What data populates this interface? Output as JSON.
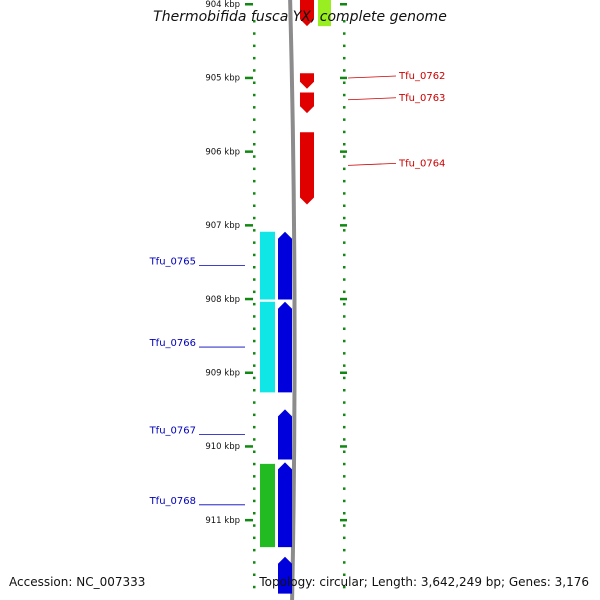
{
  "title": "Thermobifida fusca YX, complete genome",
  "footer": {
    "accession": "Accession: NC_007333",
    "summary": "Topology: circular; Length: 3,642,249 bp; Genes: 3,176"
  },
  "colors": {
    "forward_strand_cds": "#e00000",
    "forward_strand_rna": "#99ee22",
    "reverse_strand_cds": "#0000dd",
    "reverse_strand_cyan": "#11e6e6",
    "reverse_strand_green": "#22bb22",
    "tick": "#118811",
    "backbone": "#8c8c8c",
    "label_red": "#cc0000",
    "label_blue": "#0000bb"
  },
  "ruler": {
    "unit": "kbp",
    "ticks": [
      {
        "label": "904 kbp",
        "kbp": 904
      },
      {
        "label": "905 kbp",
        "kbp": 905
      },
      {
        "label": "906 kbp",
        "kbp": 906
      },
      {
        "label": "907 kbp",
        "kbp": 907
      },
      {
        "label": "908 kbp",
        "kbp": 908
      },
      {
        "label": "909 kbp",
        "kbp": 909
      },
      {
        "label": "910 kbp",
        "kbp": 910
      },
      {
        "label": "911 kbp",
        "kbp": 911
      }
    ]
  },
  "features": [
    {
      "name": "",
      "strand": "+",
      "start_kbp": 903.8,
      "end_kbp": 904.3,
      "color": "forward_strand_cds",
      "track": 0
    },
    {
      "name": "",
      "strand": "+",
      "start_kbp": 903.8,
      "end_kbp": 904.3,
      "color": "forward_strand_rna",
      "track": 1
    },
    {
      "name": "Tfu_0762",
      "strand": "+",
      "start_kbp": 904.94,
      "end_kbp": 905.15,
      "color": "forward_strand_cds",
      "track": 0
    },
    {
      "name": "Tfu_0763",
      "strand": "+",
      "start_kbp": 905.2,
      "end_kbp": 905.48,
      "color": "forward_strand_cds",
      "track": 0
    },
    {
      "name": "Tfu_0764",
      "strand": "+",
      "start_kbp": 905.74,
      "end_kbp": 906.72,
      "color": "forward_strand_cds",
      "track": 0
    },
    {
      "name": "",
      "strand": "-",
      "start_kbp": 907.09,
      "end_kbp": 908.01,
      "color": "reverse_strand_cyan",
      "track": 1
    },
    {
      "name": "Tfu_0765",
      "strand": "-",
      "start_kbp": 907.09,
      "end_kbp": 908.01,
      "color": "reverse_strand_cds",
      "track": 0
    },
    {
      "name": "",
      "strand": "-",
      "start_kbp": 908.04,
      "end_kbp": 909.27,
      "color": "reverse_strand_cyan",
      "track": 1
    },
    {
      "name": "Tfu_0766",
      "strand": "-",
      "start_kbp": 908.04,
      "end_kbp": 909.27,
      "color": "reverse_strand_cds",
      "track": 0
    },
    {
      "name": "Tfu_0767",
      "strand": "-",
      "start_kbp": 909.5,
      "end_kbp": 910.18,
      "color": "reverse_strand_cds",
      "track": 0
    },
    {
      "name": "",
      "strand": "-",
      "start_kbp": 910.24,
      "end_kbp": 911.37,
      "color": "reverse_strand_green",
      "track": 1
    },
    {
      "name": "Tfu_0768",
      "strand": "-",
      "start_kbp": 910.22,
      "end_kbp": 911.37,
      "color": "reverse_strand_cds",
      "track": 0
    },
    {
      "name": "",
      "strand": "-",
      "start_kbp": 911.5,
      "end_kbp": 912.0,
      "color": "reverse_strand_cds",
      "track": 0
    }
  ]
}
